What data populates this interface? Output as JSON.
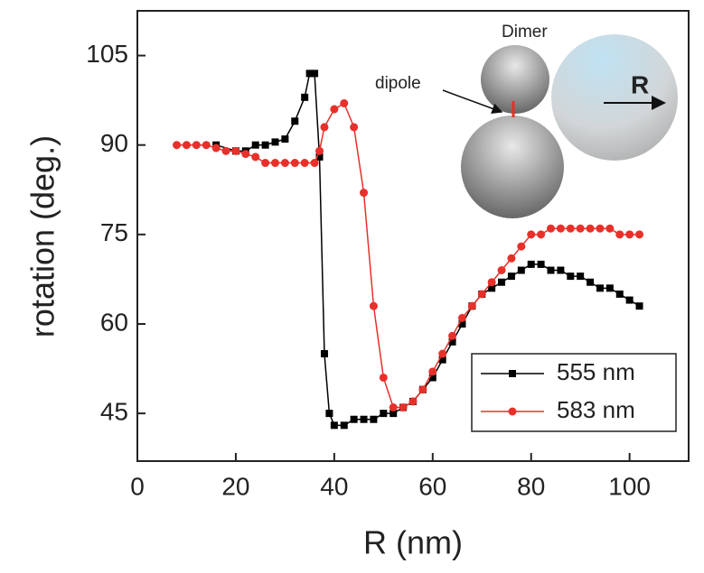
{
  "chart_data": {
    "type": "line",
    "x_label": "R (nm)",
    "y_label": "rotation (deg.)",
    "xlim": [
      0,
      112
    ],
    "xticks": [
      0,
      20,
      40,
      60,
      80,
      100
    ],
    "ylim": [
      37,
      112.5
    ],
    "yticks": [
      45,
      60,
      75,
      90,
      105
    ],
    "legend": "lower right",
    "annotations": {
      "dimer": "Dimer",
      "dipole": "dipole",
      "arrow": "R"
    },
    "series": [
      {
        "name": "555 nm",
        "color": "#000000",
        "marker": "square",
        "x": [
          16,
          20,
          22,
          24,
          26,
          28,
          30,
          32,
          34,
          35,
          36,
          37,
          38,
          39,
          40,
          42,
          44,
          46,
          48,
          50,
          52,
          54,
          56,
          58,
          60,
          62,
          64,
          66,
          68,
          70,
          72,
          74,
          76,
          78,
          80,
          82,
          84,
          86,
          88,
          90,
          92,
          94,
          96,
          98,
          100,
          102
        ],
        "values": [
          90,
          89,
          89,
          90,
          90,
          90.5,
          91,
          94,
          98,
          102,
          102,
          88,
          55,
          45,
          43,
          43,
          44,
          44,
          44,
          45,
          45,
          46,
          47,
          49,
          51,
          54,
          57,
          60,
          63,
          65,
          66,
          67,
          68,
          69,
          70,
          70,
          69,
          69,
          68,
          68,
          67,
          66,
          66,
          65,
          64,
          63
        ]
      },
      {
        "name": "583 nm",
        "color": "#e8302a",
        "marker": "circle",
        "x": [
          8,
          10,
          12,
          14,
          16,
          18,
          20,
          22,
          24,
          26,
          28,
          30,
          32,
          34,
          36,
          37,
          38,
          40,
          42,
          44,
          46,
          48,
          50,
          52,
          54,
          56,
          58,
          60,
          62,
          64,
          66,
          68,
          70,
          72,
          74,
          76,
          78,
          80,
          82,
          84,
          86,
          88,
          90,
          92,
          94,
          96,
          98,
          100,
          102
        ],
        "values": [
          90,
          90,
          90,
          90,
          89.5,
          89,
          89,
          88.5,
          88,
          87,
          87,
          87,
          87,
          87,
          87,
          89,
          93,
          96,
          97,
          93,
          82,
          63,
          51,
          46,
          46,
          47,
          49,
          52,
          55,
          58,
          61,
          63,
          65,
          67,
          69,
          71,
          73,
          75,
          75,
          76,
          76,
          76,
          76,
          76,
          76,
          76,
          75,
          75,
          75
        ]
      }
    ]
  }
}
